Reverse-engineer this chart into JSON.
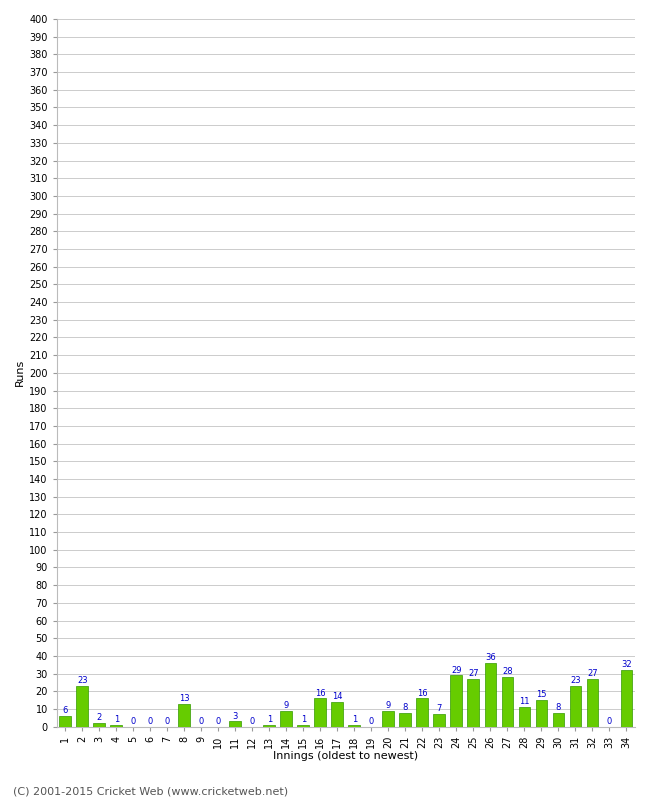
{
  "innings": [
    1,
    2,
    3,
    4,
    5,
    6,
    7,
    8,
    9,
    10,
    11,
    12,
    13,
    14,
    15,
    16,
    17,
    18,
    19,
    20,
    21,
    22,
    23,
    24,
    25,
    26,
    27,
    28,
    29,
    30,
    31,
    32,
    33,
    34
  ],
  "runs": [
    6,
    23,
    2,
    1,
    0,
    0,
    0,
    13,
    0,
    0,
    3,
    0,
    1,
    9,
    1,
    16,
    14,
    1,
    0,
    9,
    8,
    16,
    7,
    29,
    27,
    36,
    28,
    11,
    15,
    8,
    23,
    27,
    0,
    32
  ],
  "bar_color": "#66cc00",
  "bar_edge_color": "#339900",
  "label_color": "#0000cc",
  "ylabel": "Runs",
  "xlabel": "Innings (oldest to newest)",
  "ylim": [
    0,
    400
  ],
  "ytick_step": 10,
  "background_color": "#ffffff",
  "grid_color": "#cccccc",
  "footer": "(C) 2001-2015 Cricket Web (www.cricketweb.net)",
  "label_fontsize": 8,
  "tick_fontsize": 7,
  "footer_fontsize": 8,
  "value_label_fontsize": 6
}
